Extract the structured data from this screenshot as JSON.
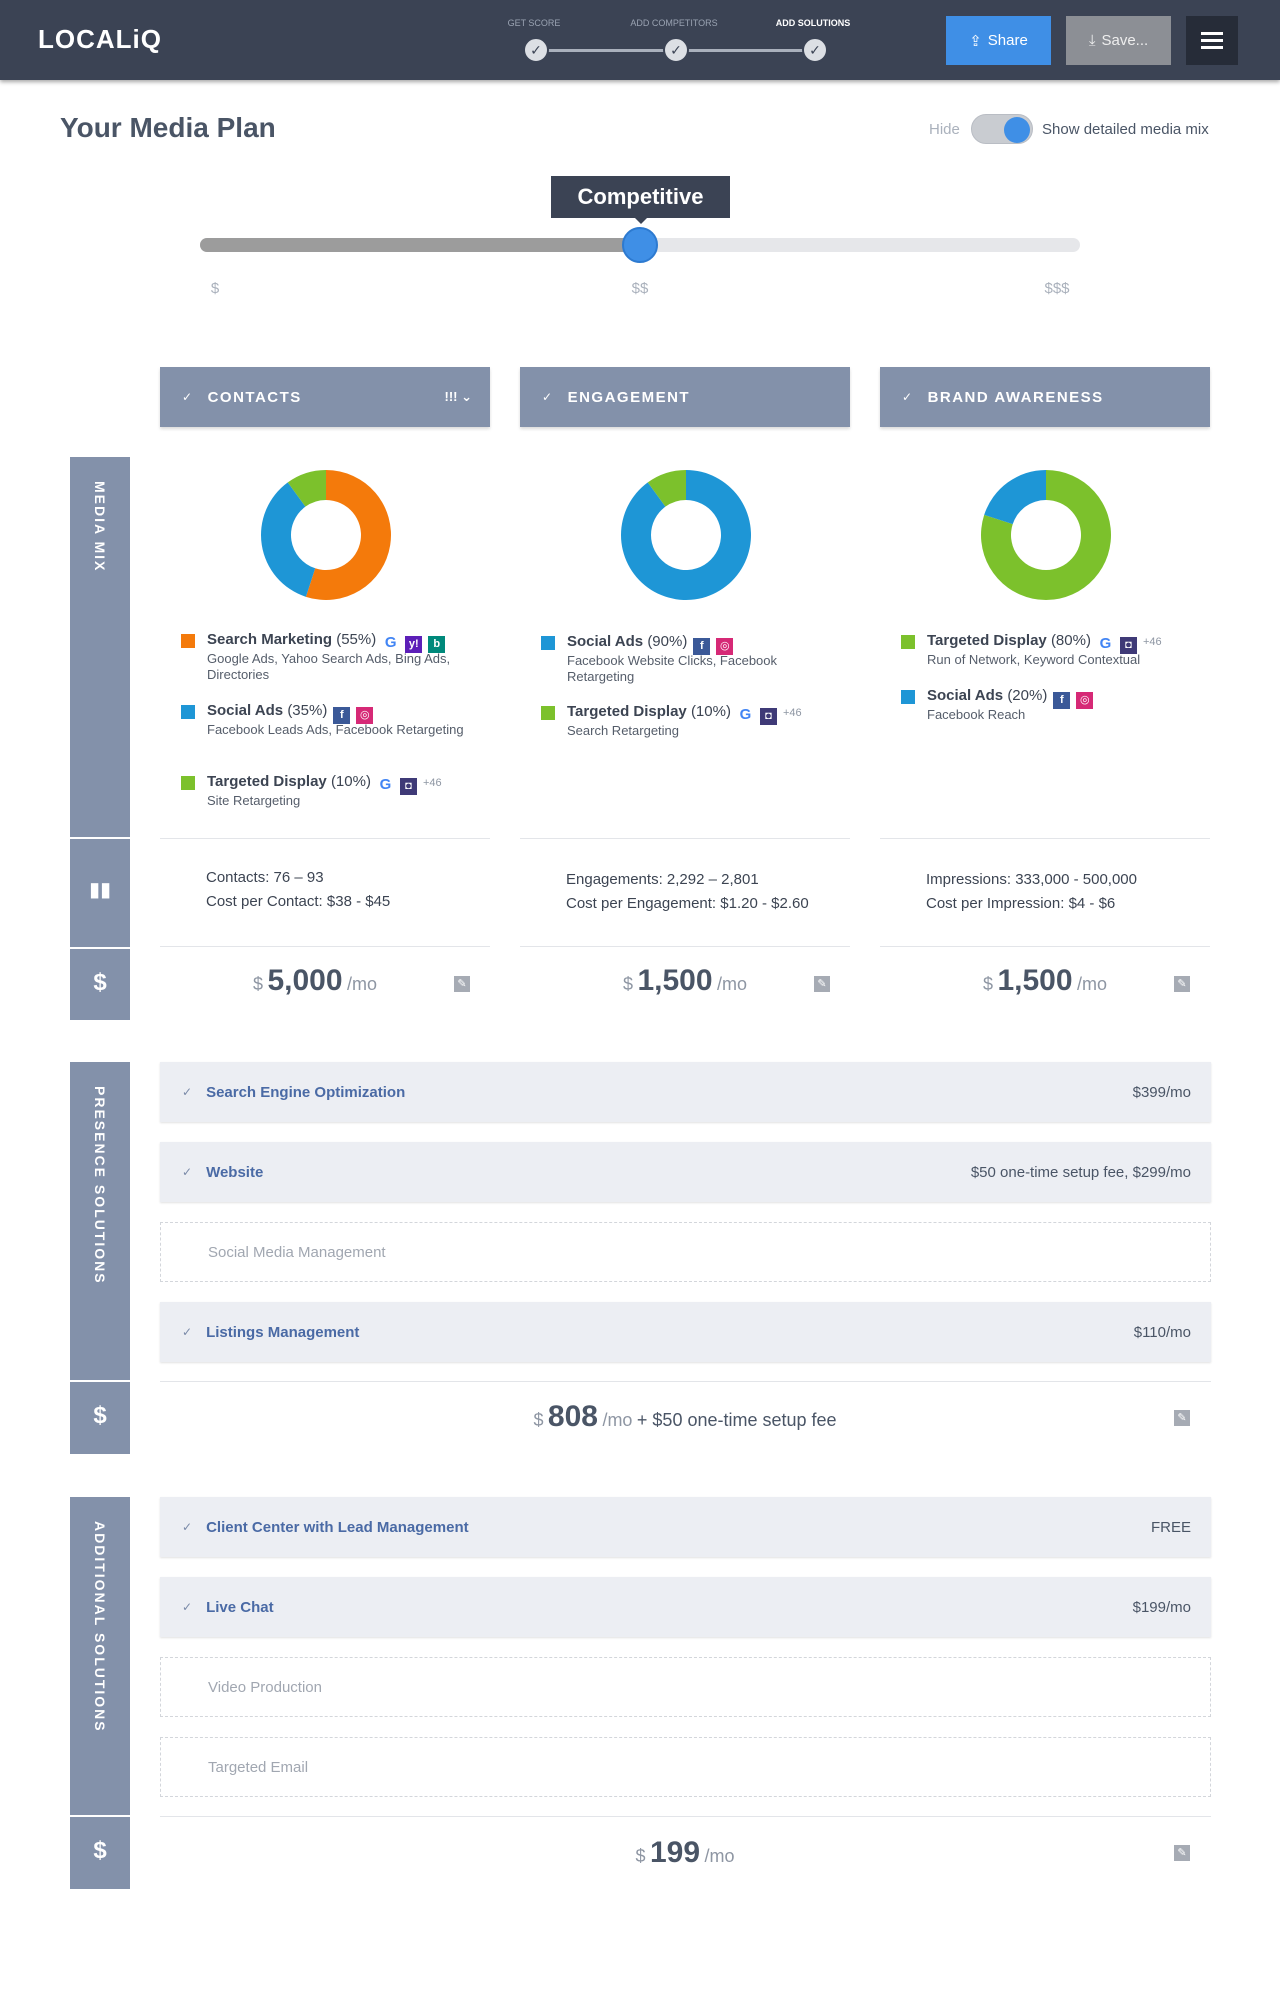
{
  "header": {
    "logo": "LOCALiQ",
    "steps": [
      {
        "label": "GET SCORE",
        "done": true
      },
      {
        "label": "ADD COMPETITORS",
        "done": true
      },
      {
        "label": "ADD SOLUTIONS",
        "done": true,
        "active": true
      }
    ],
    "share_label": "Share",
    "save_label": "Save..."
  },
  "page": {
    "title": "Your Media Plan",
    "toggle_hide_label": "Hide",
    "toggle_show_label": "Show detailed media mix",
    "toggle_on": true
  },
  "budget_slider": {
    "current_label": "Competitive",
    "ticks": [
      "$",
      "$$",
      "$$$"
    ],
    "value_fraction": 0.5
  },
  "sections": {
    "media_mix_label": "MEDIA MIX",
    "presence_label": "PRESENCE SOLUTIONS",
    "additional_label": "ADDITIONAL SOLUTIONS",
    "stats_icon": "bar-chart-icon",
    "price_icon": "dollar-icon",
    "dollar_symbol": "$"
  },
  "colors": {
    "search": "#f47a0b",
    "social": "#1e96d6",
    "display": "#7cc12c",
    "header_bg": "#3b4354",
    "column_head": "#8391aa",
    "accent": "#3f8fe6"
  },
  "columns": [
    {
      "title": "CONTACTS",
      "more_label": "!!! ⌄",
      "mix": [
        {
          "key": "search",
          "name": "Search Marketing",
          "pct": 55,
          "pct_label": "(55%)",
          "detail": "Google Ads, Yahoo Search Ads, Bing Ads, Directories",
          "icons": [
            "google-icon",
            "yahoo-icon",
            "bing-icon"
          ],
          "more": ""
        },
        {
          "key": "social",
          "name": "Social Ads",
          "pct": 35,
          "pct_label": "(35%)",
          "detail": "Facebook Leads Ads, Facebook Retargeting",
          "icons": [
            "facebook-icon",
            "instagram-icon"
          ],
          "more": ""
        },
        {
          "key": "display",
          "name": "Targeted Display",
          "pct": 10,
          "pct_label": "(10%)",
          "detail": "Site Retargeting",
          "icons": [
            "google-icon",
            "network-icon"
          ],
          "more": "+46"
        }
      ],
      "stats": [
        {
          "label": "Contacts:",
          "value": "76 – 93"
        },
        {
          "label": "Cost per Contact:",
          "value": "$38 - $45"
        }
      ],
      "price": {
        "currency": "$",
        "amount": "5,000",
        "per": "/mo"
      }
    },
    {
      "title": "ENGAGEMENT",
      "more_label": "",
      "mix": [
        {
          "key": "social",
          "name": "Social Ads",
          "pct": 90,
          "pct_label": "(90%)",
          "detail": "Facebook Website Clicks, Facebook Retargeting",
          "icons": [
            "facebook-icon",
            "instagram-icon"
          ],
          "more": ""
        },
        {
          "key": "display",
          "name": "Targeted Display",
          "pct": 10,
          "pct_label": "(10%)",
          "detail": "Search Retargeting",
          "icons": [
            "google-icon",
            "network-icon"
          ],
          "more": "+46"
        }
      ],
      "stats": [
        {
          "label": "Engagements:",
          "value": "2,292 – 2,801"
        },
        {
          "label": "Cost per Engagement:",
          "value": "$1.20 - $2.60"
        }
      ],
      "price": {
        "currency": "$",
        "amount": "1,500",
        "per": "/mo"
      }
    },
    {
      "title": "BRAND AWARENESS",
      "more_label": "",
      "mix": [
        {
          "key": "display",
          "name": "Targeted Display",
          "pct": 80,
          "pct_label": "(80%)",
          "detail": "Run of Network, Keyword Contextual",
          "icons": [
            "google-icon",
            "network-icon"
          ],
          "more": "+46"
        },
        {
          "key": "social",
          "name": "Social Ads",
          "pct": 20,
          "pct_label": "(20%)",
          "detail": "Facebook Reach",
          "icons": [
            "facebook-icon",
            "instagram-icon"
          ],
          "more": ""
        }
      ],
      "stats": [
        {
          "label": "Impressions:",
          "value": "333,000 - 500,000"
        },
        {
          "label": "Cost per Impression:",
          "value": "$4 - $6"
        }
      ],
      "price": {
        "currency": "$",
        "amount": "1,500",
        "per": "/mo"
      }
    }
  ],
  "presence": {
    "items": [
      {
        "name": "Search Engine Optimization",
        "price": "$399/mo",
        "selected": true
      },
      {
        "name": "Website",
        "price": "$50 one-time setup fee, $299/mo",
        "selected": true
      },
      {
        "name": "Social Media Management",
        "price": "",
        "selected": false
      },
      {
        "name": "Listings Management",
        "price": "$110/mo",
        "selected": true
      }
    ],
    "total": {
      "currency": "$",
      "amount": "808",
      "per": "/mo",
      "extra": "+ $50 one-time setup fee"
    }
  },
  "additional": {
    "items": [
      {
        "name": "Client Center with Lead Management",
        "price": "FREE",
        "selected": true
      },
      {
        "name": "Live Chat",
        "price": "$199/mo",
        "selected": true
      },
      {
        "name": "Video Production",
        "price": "",
        "selected": false
      },
      {
        "name": "Targeted Email",
        "price": "",
        "selected": false
      }
    ],
    "total": {
      "currency": "$",
      "amount": "199",
      "per": "/mo"
    }
  }
}
